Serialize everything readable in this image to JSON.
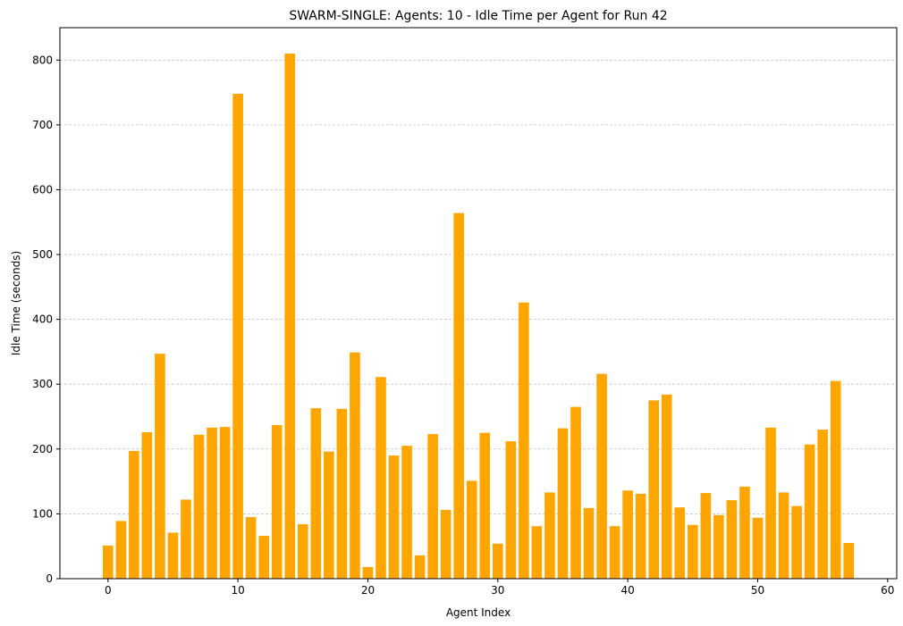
{
  "chart_data": {
    "type": "bar",
    "title": "SWARM-SINGLE: Agents: 10 - Idle Time per Agent for Run 42",
    "xlabel": "Agent Index",
    "ylabel": "Idle Time (seconds)",
    "bar_color": "#ffa500",
    "grid_color": "#b0b0b0",
    "grid": "y-dashed",
    "xlim": [
      -3.7,
      60.7
    ],
    "ylim": [
      0,
      850
    ],
    "xticks": [
      0,
      10,
      20,
      30,
      40,
      50,
      60
    ],
    "yticks": [
      0,
      100,
      200,
      300,
      400,
      500,
      600,
      700,
      800
    ],
    "categories": [
      0,
      1,
      2,
      3,
      4,
      5,
      6,
      7,
      8,
      9,
      10,
      11,
      12,
      13,
      14,
      15,
      16,
      17,
      18,
      19,
      20,
      21,
      22,
      23,
      24,
      25,
      26,
      27,
      28,
      29,
      30,
      31,
      32,
      33,
      34,
      35,
      36,
      37,
      38,
      39,
      40,
      41,
      42,
      43,
      44,
      45,
      46,
      47,
      48,
      49,
      50,
      51,
      52,
      53,
      54,
      55,
      56,
      57
    ],
    "values": [
      51,
      89,
      197,
      226,
      347,
      71,
      122,
      222,
      233,
      234,
      748,
      95,
      66,
      237,
      810,
      84,
      263,
      196,
      262,
      349,
      18,
      311,
      190,
      205,
      36,
      223,
      106,
      564,
      151,
      225,
      54,
      212,
      426,
      81,
      133,
      232,
      265,
      109,
      316,
      81,
      136,
      131,
      275,
      284,
      110,
      83,
      132,
      98,
      121,
      142,
      94,
      233,
      133,
      112,
      207,
      230,
      305,
      55
    ]
  }
}
